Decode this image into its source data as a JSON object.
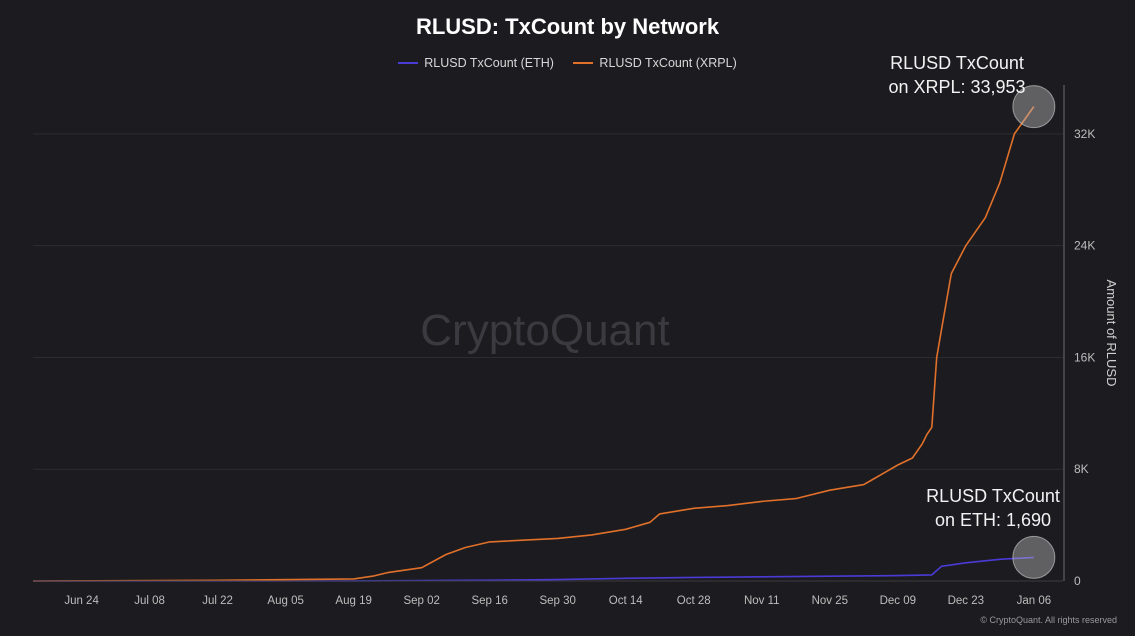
{
  "chart_data": {
    "type": "line",
    "title": "RLUSD: TxCount by Network",
    "ylabel": "Amount of RLUSD",
    "xlabel": "",
    "x_tick_labels": [
      "Jun 24",
      "Jul 08",
      "Jul 22",
      "Aug 05",
      "Aug 19",
      "Sep 02",
      "Sep 16",
      "Sep 30",
      "Oct 14",
      "Oct 28",
      "Nov 11",
      "Nov 25",
      "Dec 09",
      "Dec 23",
      "Jan 06"
    ],
    "y_tick_labels": [
      "0",
      "8K",
      "16K",
      "24K",
      "32K"
    ],
    "y_ticks": [
      0,
      8000,
      16000,
      24000,
      32000
    ],
    "ylim": [
      0,
      35500
    ],
    "xlim": [
      "2024-06-14",
      "2025-01-12"
    ],
    "grid": true,
    "legend_position": "top-center",
    "watermark": "CryptoQuant",
    "footer": "© CryptoQuant. All rights reserved",
    "series": [
      {
        "name": "RLUSD TxCount (ETH)",
        "color": "#4a3bd6",
        "x": [
          "2024-06-14",
          "2024-08-19",
          "2024-09-02",
          "2024-09-16",
          "2024-09-30",
          "2024-10-14",
          "2024-10-28",
          "2024-11-11",
          "2024-11-25",
          "2024-12-09",
          "2024-12-16",
          "2024-12-17",
          "2024-12-18",
          "2024-12-23",
          "2024-12-30",
          "2025-01-06"
        ],
        "values": [
          0,
          5,
          30,
          60,
          100,
          190,
          260,
          300,
          340,
          390,
          440,
          750,
          1050,
          1300,
          1550,
          1690
        ]
      },
      {
        "name": "RLUSD TxCount (XRPL)",
        "color": "#e0702a",
        "x": [
          "2024-06-14",
          "2024-07-22",
          "2024-08-19",
          "2024-08-23",
          "2024-08-26",
          "2024-09-02",
          "2024-09-07",
          "2024-09-11",
          "2024-09-16",
          "2024-09-30",
          "2024-10-07",
          "2024-10-14",
          "2024-10-19",
          "2024-10-21",
          "2024-10-28",
          "2024-11-04",
          "2024-11-11",
          "2024-11-18",
          "2024-11-25",
          "2024-12-02",
          "2024-12-04",
          "2024-12-09",
          "2024-12-12",
          "2024-12-14",
          "2024-12-15",
          "2024-12-16",
          "2024-12-17",
          "2024-12-18",
          "2024-12-20",
          "2024-12-23",
          "2024-12-27",
          "2024-12-30",
          "2025-01-02",
          "2025-01-06"
        ],
        "values": [
          0,
          50,
          150,
          350,
          600,
          950,
          1900,
          2400,
          2800,
          3050,
          3300,
          3700,
          4200,
          4800,
          5200,
          5400,
          5700,
          5900,
          6500,
          6900,
          7300,
          8300,
          8800,
          9800,
          10500,
          11000,
          16000,
          18000,
          22000,
          24000,
          26000,
          28500,
          32000,
          33953
        ]
      }
    ],
    "annotations": [
      {
        "line1": "RLUSD TxCount",
        "line2": "on XRPL: 33,953",
        "x": "2025-01-06",
        "y": 33953
      },
      {
        "line1": "RLUSD TxCount",
        "line2": "on ETH: 1,690",
        "x": "2025-01-06",
        "y": 1690
      }
    ]
  }
}
